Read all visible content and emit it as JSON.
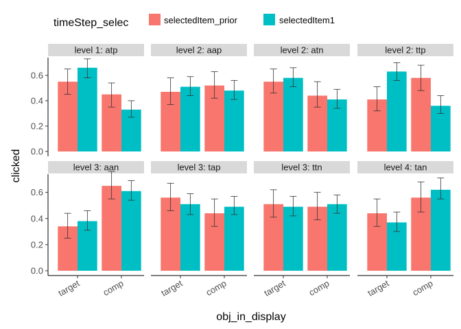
{
  "chart_data": {
    "type": "bar",
    "facet_layout": "4 columns x 2 rows",
    "legend": {
      "title": "timeStep_selec",
      "position": "top",
      "entries": [
        {
          "name": "selectedItem_prior",
          "color": "#F8766D"
        },
        {
          "name": "selectedItem1",
          "color": "#00BFC4"
        }
      ]
    },
    "xlabel": "obj_in_display",
    "ylabel": "clicked",
    "categories": [
      "target",
      "comp"
    ],
    "yticks": [
      0.0,
      0.2,
      0.4,
      0.6
    ],
    "ytick_labels": [
      "0.0",
      "0.2",
      "0.4",
      "0.6"
    ],
    "ylim": [
      0,
      0.74
    ],
    "grid": false,
    "panels": [
      {
        "title": "level 1: atp",
        "series": [
          {
            "values": [
              0.55,
              0.45
            ],
            "err_low": [
              0.45,
              0.35
            ],
            "err_high": [
              0.65,
              0.54
            ]
          },
          {
            "values": [
              0.66,
              0.33
            ],
            "err_low": [
              0.58,
              0.27
            ],
            "err_high": [
              0.73,
              0.4
            ]
          }
        ]
      },
      {
        "title": "level 2: aap",
        "series": [
          {
            "values": [
              0.47,
              0.52
            ],
            "err_low": [
              0.37,
              0.42
            ],
            "err_high": [
              0.58,
              0.63
            ]
          },
          {
            "values": [
              0.51,
              0.48
            ],
            "err_low": [
              0.44,
              0.41
            ],
            "err_high": [
              0.59,
              0.56
            ]
          }
        ]
      },
      {
        "title": "level 2: atn",
        "series": [
          {
            "values": [
              0.55,
              0.44
            ],
            "err_low": [
              0.46,
              0.35
            ],
            "err_high": [
              0.65,
              0.55
            ]
          },
          {
            "values": [
              0.58,
              0.41
            ],
            "err_low": [
              0.51,
              0.34
            ],
            "err_high": [
              0.66,
              0.49
            ]
          }
        ]
      },
      {
        "title": "level 2: ttp",
        "series": [
          {
            "values": [
              0.41,
              0.58
            ],
            "err_low": [
              0.32,
              0.48
            ],
            "err_high": [
              0.51,
              0.68
            ]
          },
          {
            "values": [
              0.63,
              0.36
            ],
            "err_low": [
              0.56,
              0.3
            ],
            "err_high": [
              0.7,
              0.44
            ]
          }
        ]
      },
      {
        "title": "level 3: aan",
        "series": [
          {
            "values": [
              0.34,
              0.65
            ],
            "err_low": [
              0.25,
              0.55
            ],
            "err_high": [
              0.44,
              0.76
            ]
          },
          {
            "values": [
              0.38,
              0.61
            ],
            "err_low": [
              0.31,
              0.54
            ],
            "err_high": [
              0.46,
              0.69
            ]
          }
        ]
      },
      {
        "title": "level 3: tap",
        "series": [
          {
            "values": [
              0.56,
              0.44
            ],
            "err_low": [
              0.46,
              0.34
            ],
            "err_high": [
              0.67,
              0.55
            ]
          },
          {
            "values": [
              0.51,
              0.49
            ],
            "err_low": [
              0.43,
              0.43
            ],
            "err_high": [
              0.59,
              0.57
            ]
          }
        ]
      },
      {
        "title": "level 3: ttn",
        "series": [
          {
            "values": [
              0.51,
              0.49
            ],
            "err_low": [
              0.41,
              0.39
            ],
            "err_high": [
              0.62,
              0.6
            ]
          },
          {
            "values": [
              0.49,
              0.51
            ],
            "err_low": [
              0.42,
              0.44
            ],
            "err_high": [
              0.57,
              0.58
            ]
          }
        ]
      },
      {
        "title": "level 4: tan",
        "series": [
          {
            "values": [
              0.44,
              0.56
            ],
            "err_low": [
              0.34,
              0.45
            ],
            "err_high": [
              0.55,
              0.68
            ]
          },
          {
            "values": [
              0.37,
              0.62
            ],
            "err_low": [
              0.3,
              0.55
            ],
            "err_high": [
              0.45,
              0.71
            ]
          }
        ]
      }
    ]
  }
}
